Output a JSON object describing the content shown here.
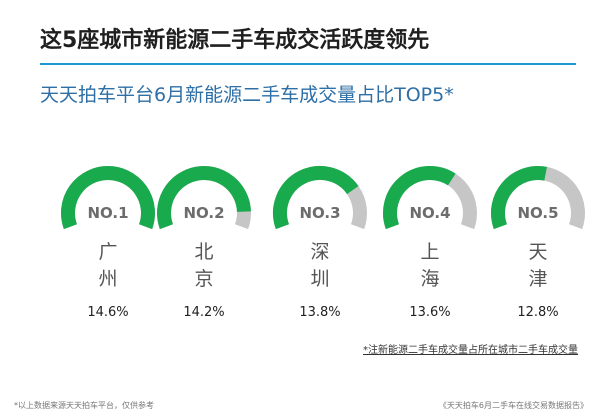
{
  "title": "这5座城市新能源二手车成交活跃度领先",
  "subtitle": "天天拍车平台6月新能源二手车成交量占比TOP5*",
  "note": "*注新能源二手车成交量占所在城市二手车成交量",
  "footer_left": "*以上数据来源天天拍车平台，仅供参考",
  "footer_right": "《天天拍车6月二手车在线交易数据报告》",
  "colors": {
    "accent": "#1aaa4e",
    "track": "#c6c6c6",
    "title_rule": "#1b9ad6",
    "subtitle": "#2d6fa6"
  },
  "chart_data": {
    "type": "gauge",
    "title": "天天拍车平台6月新能源二手车成交量占比TOP5*",
    "categories": [
      "广州",
      "北京",
      "深圳",
      "上海",
      "天津"
    ],
    "ranks": [
      "NO.1",
      "NO.2",
      "NO.3",
      "NO.4",
      "NO.5"
    ],
    "values": [
      14.6,
      14.2,
      13.8,
      13.6,
      12.8
    ],
    "value_labels": [
      "14.6%",
      "14.2%",
      "13.8%",
      "13.6%",
      "12.8%"
    ],
    "gauge_fill_fractions": [
      1.0,
      0.9,
      0.75,
      0.65,
      0.55
    ],
    "unit": "%"
  }
}
